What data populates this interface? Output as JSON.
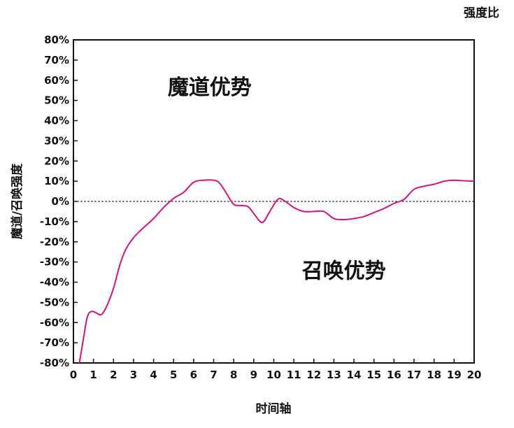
{
  "chart_data": {
    "type": "line",
    "title": "强度比",
    "xlabel": "时间轴",
    "ylabel": "魔道/召唤强度",
    "xlim": [
      0,
      20
    ],
    "ylim": [
      -80,
      80
    ],
    "x_ticks": [
      "0",
      "1",
      "2",
      "3",
      "4",
      "5",
      "6",
      "7",
      "8",
      "9",
      "10",
      "11",
      "12",
      "13",
      "14",
      "15",
      "16",
      "17",
      "18",
      "19",
      "20"
    ],
    "y_ticks": [
      "80%",
      "70%",
      "60%",
      "50%",
      "40%",
      "30%",
      "20%",
      "10%",
      "0%",
      "-10%",
      "-20%",
      "-30%",
      "-40%",
      "-50%",
      "-60%",
      "-70%",
      "-80%"
    ],
    "reference_line": {
      "y": 0,
      "style": "dashed"
    },
    "annotations": [
      {
        "text": "魔道优势",
        "x": 6.8,
        "y": 53
      },
      {
        "text": "召唤优势",
        "x": 13.5,
        "y": -38
      }
    ],
    "grid": false,
    "series": [
      {
        "color": "#d6127e",
        "points": [
          [
            0.3,
            -80
          ],
          [
            0.5,
            -68
          ],
          [
            0.7,
            -57
          ],
          [
            0.9,
            -54.5
          ],
          [
            1.1,
            -55
          ],
          [
            1.4,
            -56
          ],
          [
            1.7,
            -51
          ],
          [
            2.0,
            -43
          ],
          [
            2.3,
            -32
          ],
          [
            2.6,
            -24
          ],
          [
            3.0,
            -18
          ],
          [
            3.5,
            -13
          ],
          [
            4.0,
            -8.5
          ],
          [
            4.5,
            -3
          ],
          [
            5.0,
            1.5
          ],
          [
            5.5,
            4.5
          ],
          [
            6.0,
            9.5
          ],
          [
            6.5,
            10.5
          ],
          [
            7.0,
            10.5
          ],
          [
            7.3,
            9
          ],
          [
            7.7,
            3
          ],
          [
            8.0,
            -1.5
          ],
          [
            8.3,
            -2
          ],
          [
            8.7,
            -2.5
          ],
          [
            9.0,
            -6
          ],
          [
            9.3,
            -9.8
          ],
          [
            9.5,
            -10
          ],
          [
            9.8,
            -5
          ],
          [
            10.2,
            1
          ],
          [
            10.5,
            0.5
          ],
          [
            11.0,
            -3
          ],
          [
            11.5,
            -5
          ],
          [
            12.0,
            -5
          ],
          [
            12.5,
            -5
          ],
          [
            13.0,
            -8.5
          ],
          [
            13.5,
            -9
          ],
          [
            14.0,
            -8.5
          ],
          [
            14.5,
            -7.5
          ],
          [
            15.0,
            -5.5
          ],
          [
            15.5,
            -3.5
          ],
          [
            16.0,
            -1
          ],
          [
            16.5,
            1
          ],
          [
            17.0,
            6
          ],
          [
            17.5,
            7.5
          ],
          [
            18.0,
            8.5
          ],
          [
            18.5,
            10
          ],
          [
            19.0,
            10.5
          ],
          [
            19.5,
            10.2
          ],
          [
            20.0,
            10
          ]
        ]
      }
    ]
  }
}
